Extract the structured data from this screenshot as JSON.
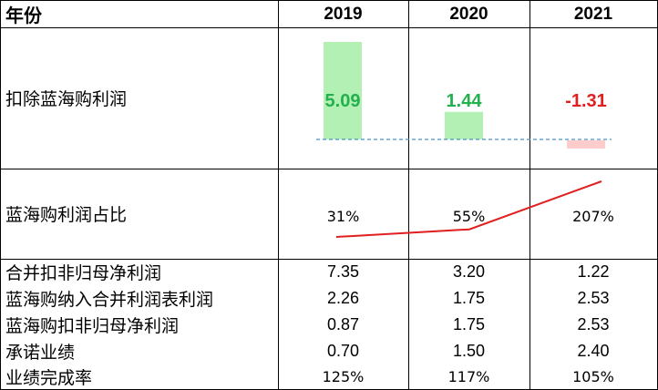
{
  "header": {
    "label": "年份",
    "years": [
      "2019",
      "2020",
      "2021"
    ]
  },
  "rows": [
    {
      "label": "扣除蓝海购利润"
    },
    {
      "label": "蓝海购利润占比"
    },
    {
      "label": "合并扣非归母净利润",
      "values": [
        "7.35",
        "3.20",
        "1.22"
      ]
    },
    {
      "label": "蓝海购纳入合并利润表利润",
      "values": [
        "2.26",
        "1.75",
        "2.53"
      ]
    },
    {
      "label": "蓝海购扣非归母净利润",
      "values": [
        "0.87",
        "1.75",
        "2.53"
      ]
    },
    {
      "label": "承诺业绩",
      "values": [
        "0.70",
        "1.50",
        "2.40"
      ]
    },
    {
      "label": "业绩完成率",
      "values": [
        "125%",
        "117%",
        "105%"
      ]
    }
  ],
  "chart_data": [
    {
      "type": "bar",
      "categories": [
        "2019",
        "2020",
        "2021"
      ],
      "values": [
        5.09,
        1.44,
        -1.31
      ],
      "data_labels": [
        "5.09",
        "1.44",
        "-1.31"
      ],
      "colors": {
        "positive_bar": "#b3f0b3",
        "negative_bar": "#ffcccc",
        "positive_label": "#22b14c",
        "negative_label": "#e02020",
        "baseline": "#4a90c8"
      },
      "ylim": [
        -1.31,
        5.09
      ]
    },
    {
      "type": "line",
      "categories": [
        "2019",
        "2020",
        "2021"
      ],
      "values": [
        0.31,
        0.55,
        2.07
      ],
      "data_labels": [
        "31%",
        "55%",
        "207%"
      ],
      "colors": {
        "line": "#e02020"
      }
    }
  ]
}
